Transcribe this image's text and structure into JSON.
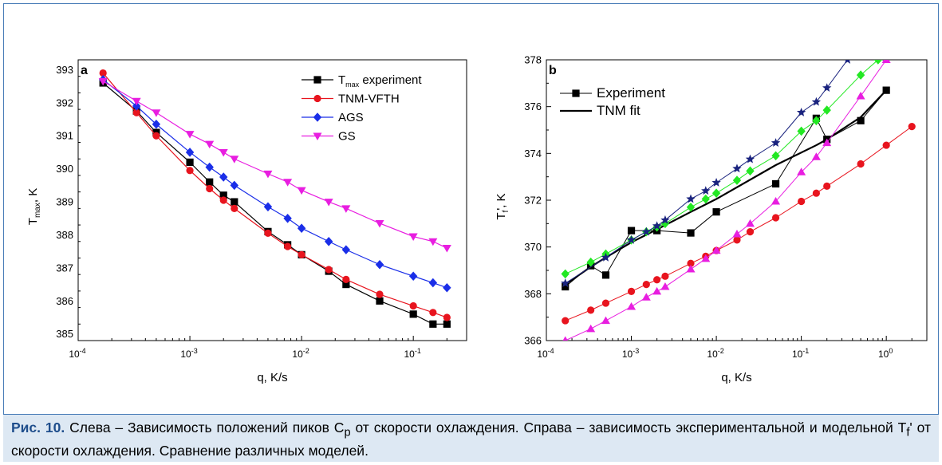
{
  "caption": {
    "label": "Рис. 10.",
    "text_before_sub": " Слева – Зависимость положений пиков C",
    "sub": "p",
    "text_after_sub": " от скорости охлаждения. Справа – зависимость экспериментальной и модельной T",
    "sub2": "f",
    "text_end": "' от скорости охлаждения. Сравнение различных моделей."
  },
  "chart_data": [
    {
      "panel_label": "a",
      "type": "line",
      "x_scale": "log",
      "xlim": [
        0.0001,
        0.3
      ],
      "ylim": [
        384.8,
        393.3
      ],
      "xlabel": "q, K/s",
      "ylabel_main": "T",
      "ylabel_sub": "max",
      "ylabel_tail": ", K",
      "x_ticks": [
        {
          "value": 0.0001,
          "base": "10",
          "exp": "-4"
        },
        {
          "value": 0.001,
          "base": "10",
          "exp": "-3"
        },
        {
          "value": 0.01,
          "base": "10",
          "exp": "-2"
        },
        {
          "value": 0.1,
          "base": "10",
          "exp": "-1"
        }
      ],
      "y_ticks": [
        385,
        386,
        387,
        388,
        389,
        390,
        391,
        392,
        393
      ],
      "legend_position": "top-right",
      "series": [
        {
          "label_main": "T",
          "label_sub": "max",
          "label_tail": " experiment",
          "color": "#000000",
          "marker": "square",
          "x": [
            0.000167,
            0.000333,
            0.0005,
            0.001,
            0.0015,
            0.002,
            0.0025,
            0.005,
            0.0075,
            0.01,
            0.0175,
            0.025,
            0.05,
            0.1,
            0.15,
            0.2
          ],
          "y": [
            392.6,
            391.75,
            391.1,
            390.2,
            389.6,
            389.2,
            389.0,
            388.1,
            387.7,
            387.4,
            386.9,
            386.5,
            386.0,
            385.6,
            385.3,
            385.3
          ]
        },
        {
          "label_main": "TNM-VFTH",
          "color": "#e8141e",
          "marker": "circle",
          "x": [
            0.000167,
            0.000333,
            0.0005,
            0.001,
            0.0015,
            0.002,
            0.0025,
            0.005,
            0.0075,
            0.01,
            0.0175,
            0.025,
            0.05,
            0.1,
            0.15,
            0.2
          ],
          "y": [
            392.9,
            391.7,
            391.0,
            389.95,
            389.4,
            389.05,
            388.8,
            388.05,
            387.65,
            387.4,
            386.95,
            386.65,
            386.2,
            385.85,
            385.65,
            385.5
          ]
        },
        {
          "label_main": "AGS",
          "color": "#1a2ee8",
          "marker": "diamond",
          "x": [
            0.000167,
            0.000333,
            0.0005,
            0.001,
            0.0015,
            0.002,
            0.0025,
            0.005,
            0.0075,
            0.01,
            0.0175,
            0.025,
            0.05,
            0.1,
            0.15,
            0.2
          ],
          "y": [
            392.7,
            391.9,
            391.35,
            390.5,
            390.05,
            389.75,
            389.5,
            388.85,
            388.5,
            388.2,
            387.8,
            387.55,
            387.1,
            386.75,
            386.55,
            386.4
          ]
        },
        {
          "label_main": "GS",
          "color": "#e81ee0",
          "marker": "triangle-down",
          "x": [
            0.000167,
            0.000333,
            0.0005,
            0.001,
            0.0015,
            0.002,
            0.0025,
            0.005,
            0.0075,
            0.01,
            0.0175,
            0.025,
            0.05,
            0.1,
            0.15,
            0.2
          ],
          "y": [
            392.65,
            392.05,
            391.7,
            391.05,
            390.75,
            390.5,
            390.3,
            389.85,
            389.6,
            389.35,
            389.0,
            388.8,
            388.35,
            387.95,
            387.8,
            387.6
          ]
        }
      ]
    },
    {
      "panel_label": "b",
      "type": "line",
      "x_scale": "log",
      "xlim": [
        0.0001,
        3
      ],
      "ylim": [
        366,
        378
      ],
      "xlabel": "q, K/s",
      "ylabel_main": "T",
      "ylabel_sub": "f",
      "ylabel_tail": "', K",
      "x_ticks": [
        {
          "value": 0.0001,
          "base": "10",
          "exp": "-4"
        },
        {
          "value": 0.001,
          "base": "10",
          "exp": "-3"
        },
        {
          "value": 0.01,
          "base": "10",
          "exp": "-2"
        },
        {
          "value": 0.1,
          "base": "10",
          "exp": "-1"
        },
        {
          "value": 1,
          "base": "10",
          "exp": "0"
        }
      ],
      "y_ticks": [
        366,
        368,
        370,
        372,
        374,
        376,
        378
      ],
      "legend_position": "top-left",
      "series": [
        {
          "label_main": "Experiment",
          "in_legend": true,
          "color": "#000000",
          "marker": "square",
          "width": 1,
          "x": [
            0.000167,
            0.000333,
            0.0005,
            0.001,
            0.002,
            0.005,
            0.01,
            0.05,
            0.15,
            0.2,
            0.5,
            1.0
          ],
          "y": [
            368.3,
            369.2,
            368.8,
            370.7,
            370.7,
            370.6,
            371.5,
            372.7,
            375.5,
            374.6,
            375.4,
            376.7
          ]
        },
        {
          "label_main": "TNM fit",
          "in_legend": true,
          "color": "#000000",
          "marker": "none",
          "width": 2.2,
          "x": [
            0.000167,
            0.000333,
            0.0005,
            0.001,
            0.002,
            0.005,
            0.01,
            0.05,
            0.15,
            0.2,
            0.5,
            1.0
          ],
          "y": [
            368.4,
            369.15,
            369.55,
            370.2,
            370.75,
            371.5,
            372.05,
            373.5,
            374.35,
            374.6,
            375.55,
            376.7
          ]
        },
        {
          "label_main": "",
          "in_legend": false,
          "color": "#e8141e",
          "marker": "circle",
          "width": 1,
          "x": [
            0.000167,
            0.000333,
            0.0005,
            0.001,
            0.0015,
            0.002,
            0.0025,
            0.005,
            0.0075,
            0.01,
            0.0175,
            0.025,
            0.05,
            0.1,
            0.15,
            0.2,
            0.5,
            1.0,
            2.0
          ],
          "y": [
            366.85,
            367.3,
            367.6,
            368.1,
            368.4,
            368.6,
            368.75,
            369.3,
            369.6,
            369.85,
            370.3,
            370.65,
            371.25,
            371.95,
            372.3,
            372.6,
            373.55,
            374.35,
            375.15
          ]
        },
        {
          "label_main": "",
          "in_legend": false,
          "color": "#e81ee0",
          "marker": "triangle-up",
          "width": 1,
          "x": [
            0.000167,
            0.000333,
            0.0005,
            0.001,
            0.0015,
            0.002,
            0.0025,
            0.005,
            0.0075,
            0.01,
            0.0175,
            0.025,
            0.05,
            0.1,
            0.15,
            0.2,
            0.5,
            1.0
          ],
          "y": [
            366.0,
            366.5,
            366.85,
            367.45,
            367.85,
            368.1,
            368.3,
            369.05,
            369.5,
            369.85,
            370.55,
            371.0,
            371.95,
            373.2,
            373.85,
            374.45,
            376.45,
            378.0
          ]
        },
        {
          "label_main": "",
          "in_legend": false,
          "color": "#22e822",
          "marker": "diamond",
          "width": 1,
          "x": [
            0.000167,
            0.000333,
            0.0005,
            0.001,
            0.0015,
            0.002,
            0.0025,
            0.005,
            0.0075,
            0.01,
            0.0175,
            0.025,
            0.05,
            0.1,
            0.15,
            0.2,
            0.5,
            0.8
          ],
          "y": [
            368.85,
            369.35,
            369.7,
            370.3,
            370.65,
            370.85,
            371.0,
            371.7,
            372.05,
            372.3,
            372.85,
            373.25,
            373.9,
            374.95,
            375.4,
            375.85,
            377.35,
            378.0
          ]
        },
        {
          "label_main": "",
          "in_legend": false,
          "color": "#1a237e",
          "marker": "star",
          "width": 1,
          "x": [
            0.000167,
            0.0005,
            0.001,
            0.0015,
            0.002,
            0.0025,
            0.005,
            0.0075,
            0.01,
            0.0175,
            0.025,
            0.05,
            0.1,
            0.15,
            0.2,
            0.35
          ],
          "y": [
            368.45,
            369.55,
            370.3,
            370.65,
            370.9,
            371.15,
            372.05,
            372.4,
            372.75,
            373.35,
            373.75,
            374.45,
            375.75,
            376.2,
            376.8,
            378.0
          ]
        }
      ]
    }
  ]
}
